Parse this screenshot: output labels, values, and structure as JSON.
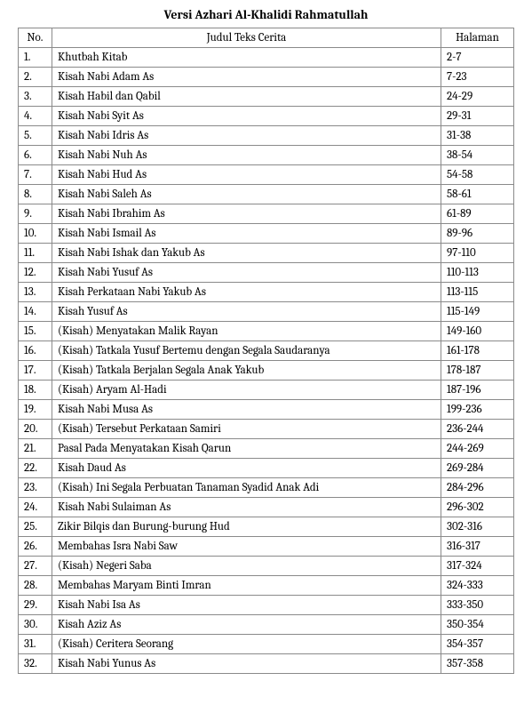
{
  "title": "Versi Azhari Al-Khalidi Rahmatullah",
  "headers": {
    "no": "No.",
    "judul": "Judul Teks Cerita",
    "halaman": "Halaman"
  },
  "rows": [
    {
      "no": "1.",
      "judul": "Khutbah Kitab",
      "halaman": "2-7"
    },
    {
      "no": "2.",
      "judul": "Kisah Nabi Adam As",
      "halaman": "7-23"
    },
    {
      "no": "3.",
      "judul": "Kisah Habil dan Qabil",
      "halaman": "24-29"
    },
    {
      "no": "4.",
      "judul": "Kisah Nabi Syit As",
      "halaman": "29-31"
    },
    {
      "no": "5.",
      "judul": "Kisah Nabi Idris As",
      "halaman": "31-38"
    },
    {
      "no": "6.",
      "judul": "Kisah Nabi Nuh As",
      "halaman": "38-54"
    },
    {
      "no": "7.",
      "judul": "Kisah Nabi Hud As",
      "halaman": "54-58"
    },
    {
      "no": "8.",
      "judul": "Kisah Nabi Saleh As",
      "halaman": "58-61"
    },
    {
      "no": "9.",
      "judul": "Kisah Nabi Ibrahim As",
      "halaman": "61-89"
    },
    {
      "no": "10.",
      "judul": "Kisah Nabi Ismail As",
      "halaman": "89-96"
    },
    {
      "no": "11.",
      "judul": "Kisah Nabi Ishak dan Yakub As",
      "halaman": "97-110"
    },
    {
      "no": "12.",
      "judul": "Kisah Nabi Yusuf As",
      "halaman": "110-113"
    },
    {
      "no": "13.",
      "judul": "Kisah Perkataan Nabi Yakub As",
      "halaman": "113-115"
    },
    {
      "no": "14.",
      "judul": "Kisah Yusuf As",
      "halaman": "115-149"
    },
    {
      "no": "15.",
      "judul": "(Kisah) Menyatakan Malik Rayan",
      "halaman": "149-160"
    },
    {
      "no": "16.",
      "judul": "(Kisah) Tatkala Yusuf Bertemu dengan Segala Saudaranya",
      "halaman": "161-178"
    },
    {
      "no": "17.",
      "judul": "(Kisah) Tatkala Berjalan Segala Anak Yakub",
      "halaman": "178-187"
    },
    {
      "no": "18.",
      "judul": "(Kisah) Aryam Al-Hadi",
      "halaman": "187-196"
    },
    {
      "no": "19.",
      "judul": "Kisah Nabi Musa As",
      "halaman": "199-236"
    },
    {
      "no": "20.",
      "judul": "(Kisah) Tersebut Perkataan Samiri",
      "halaman": "236-244"
    },
    {
      "no": "21.",
      "judul": "Pasal Pada Menyatakan Kisah Qarun",
      "halaman": "244-269"
    },
    {
      "no": "22.",
      "judul": "Kisah Daud As",
      "halaman": "269-284"
    },
    {
      "no": "23.",
      "judul": "(Kisah) Ini Segala Perbuatan Tanaman Syadid Anak Adi",
      "halaman": "284-296"
    },
    {
      "no": "24.",
      "judul": "Kisah Nabi Sulaiman As",
      "halaman": "296-302"
    },
    {
      "no": "25.",
      "judul": "Zikir Bilqis dan Burung-burung Hud",
      "halaman": "302-316"
    },
    {
      "no": "26.",
      "judul": "Membahas Isra Nabi Saw",
      "halaman": "316-317"
    },
    {
      "no": "27.",
      "judul": "(Kisah) Negeri Saba",
      "halaman": "317-324"
    },
    {
      "no": "28.",
      "judul": "Membahas Maryam Binti Imran",
      "halaman": "324-333"
    },
    {
      "no": "29.",
      "judul": "Kisah Nabi Isa As",
      "halaman": "333-350"
    },
    {
      "no": "30.",
      "judul": "Kisah Aziz As",
      "halaman": "350-354"
    },
    {
      "no": "31.",
      "judul": "(Kisah) Ceritera Seorang",
      "halaman": "354-357"
    },
    {
      "no": "32.",
      "judul": "Kisah Nabi Yunus As",
      "halaman": "357-358"
    }
  ],
  "styles": {
    "font_family": "Cambria, Georgia, serif",
    "font_size_body": 13,
    "font_size_title": 14,
    "title_weight": "bold",
    "border_color": "#8a8a8a",
    "background_color": "#ffffff",
    "text_color": "#000000",
    "col_widths": {
      "no": 38,
      "halaman": 82
    }
  }
}
